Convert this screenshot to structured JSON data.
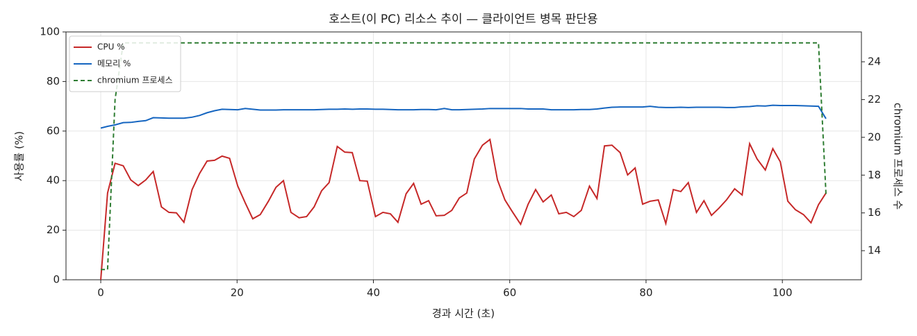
{
  "chart_data": {
    "type": "line",
    "title": "호스트(이 PC) 리소스 추이 — 클라이언트 병목 판단용",
    "x_label": "경과 시간 (초)",
    "y_label": "사용률 (%)",
    "y2_label": "chromium 프로세스 수",
    "x": [
      0,
      1.0,
      2.1,
      3.3,
      4.4,
      5.5,
      6.6,
      7.7,
      8.9,
      10.0,
      11.1,
      12.2,
      13.4,
      14.5,
      15.6,
      16.7,
      17.8,
      18.9,
      20.1,
      21.2,
      22.3,
      23.4,
      24.6,
      25.7,
      26.8,
      27.9,
      29.1,
      30.2,
      31.3,
      32.4,
      33.5,
      34.7,
      35.8,
      36.9,
      38.0,
      39.1,
      40.3,
      41.4,
      42.5,
      43.6,
      44.8,
      45.9,
      47.0,
      48.1,
      49.2,
      50.4,
      51.5,
      52.6,
      53.7,
      54.8,
      56.0,
      57.1,
      58.2,
      59.3,
      60.4,
      61.6,
      62.7,
      63.8,
      64.9,
      66.1,
      67.2,
      68.3,
      69.4,
      70.5,
      71.7,
      72.8,
      73.9,
      75.0,
      76.2,
      77.3,
      78.4,
      79.5,
      80.6,
      81.8,
      82.9,
      84.0,
      85.1,
      86.2,
      87.4,
      88.5,
      89.6,
      90.7,
      91.8,
      93.0,
      94.1,
      95.2,
      96.3,
      97.5,
      98.6,
      99.7,
      100.8,
      101.9,
      103.1,
      104.2,
      105.3,
      106.4
    ],
    "series": [
      {
        "name": "CPU %",
        "color": "#c62828",
        "dash": false,
        "values": [
          0,
          35,
          47,
          46,
          40.3,
          38,
          40.3,
          43.7,
          29.4,
          27.2,
          27,
          23.2,
          36.4,
          42.9,
          47.9,
          48.2,
          49.9,
          49,
          37.8,
          31,
          24.6,
          26.3,
          31.7,
          37.3,
          40,
          27.2,
          25,
          25.5,
          29.4,
          35.9,
          39.2,
          53.8,
          51.5,
          51.3,
          40,
          39.8,
          25.5,
          27.2,
          26.6,
          23.2,
          34.7,
          38.9,
          30.5,
          31.9,
          25.8,
          26,
          28,
          33,
          35,
          48.7,
          54.3,
          56.6,
          40.3,
          32.2,
          27.4,
          22.4,
          30.5,
          36.4,
          31.4,
          34.2,
          26.6,
          27.2,
          25.5,
          28,
          37.8,
          32.8,
          54,
          54.3,
          51.3,
          42.3,
          45.1,
          30.5,
          31.7,
          32.2,
          22.7,
          36.4,
          35.6,
          39.2,
          27.2,
          31.9,
          26,
          28.9,
          32.2,
          36.7,
          34.2,
          54.9,
          48.7,
          44.3,
          52.9,
          47.6,
          31.7,
          28.3,
          26.3,
          23,
          30.3,
          35
        ]
      },
      {
        "name": "메모리 %",
        "color": "#1565c0",
        "dash": false,
        "values": [
          61.2,
          61.9,
          62.5,
          63.4,
          63.5,
          63.9,
          64.2,
          65.4,
          65.3,
          65.2,
          65.2,
          65.2,
          65.6,
          66.3,
          67.4,
          68.2,
          68.8,
          68.7,
          68.6,
          69.1,
          68.8,
          68.5,
          68.5,
          68.5,
          68.6,
          68.6,
          68.6,
          68.6,
          68.6,
          68.7,
          68.8,
          68.8,
          68.9,
          68.8,
          68.9,
          68.9,
          68.8,
          68.8,
          68.7,
          68.6,
          68.6,
          68.6,
          68.7,
          68.7,
          68.6,
          69.1,
          68.6,
          68.6,
          68.7,
          68.8,
          68.9,
          69.1,
          69.1,
          69.1,
          69.1,
          69.1,
          68.9,
          68.9,
          68.9,
          68.6,
          68.6,
          68.6,
          68.6,
          68.7,
          68.7,
          68.9,
          69.3,
          69.6,
          69.7,
          69.7,
          69.7,
          69.7,
          70.0,
          69.6,
          69.5,
          69.5,
          69.6,
          69.5,
          69.6,
          69.6,
          69.6,
          69.6,
          69.5,
          69.5,
          69.8,
          69.9,
          70.2,
          70.1,
          70.4,
          70.3,
          70.3,
          70.3,
          70.2,
          70.1,
          70.0,
          65
        ]
      },
      {
        "name": "chromium 프로세스",
        "color": "#2e7d32",
        "dash": true,
        "axis": "y2",
        "values": [
          13,
          13,
          22,
          25,
          25,
          25,
          25,
          25,
          25,
          25,
          25,
          25,
          25,
          25,
          25,
          25,
          25,
          25,
          25,
          25,
          25,
          25,
          25,
          25,
          25,
          25,
          25,
          25,
          25,
          25,
          25,
          25,
          25,
          25,
          25,
          25,
          25,
          25,
          25,
          25,
          25,
          25,
          25,
          25,
          25,
          25,
          25,
          25,
          25,
          25,
          25,
          25,
          25,
          25,
          25,
          25,
          25,
          25,
          25,
          25,
          25,
          25,
          25,
          25,
          25,
          25,
          25,
          25,
          25,
          25,
          25,
          25,
          25,
          25,
          25,
          25,
          25,
          25,
          25,
          25,
          25,
          25,
          25,
          25,
          25,
          25,
          25,
          25,
          25,
          25,
          25,
          25,
          25,
          25,
          25,
          17
        ]
      }
    ],
    "xlim": [
      -5.1,
      111.6
    ],
    "xticks": [
      0,
      20,
      40,
      60,
      80,
      100
    ],
    "ylim": [
      0,
      100
    ],
    "yticks": [
      0,
      20,
      40,
      60,
      80,
      100
    ],
    "y2lim": [
      12.46,
      25.58
    ],
    "y2ticks": [
      14,
      16,
      18,
      20,
      22,
      24
    ],
    "grid": true,
    "legend": "upper-left"
  }
}
